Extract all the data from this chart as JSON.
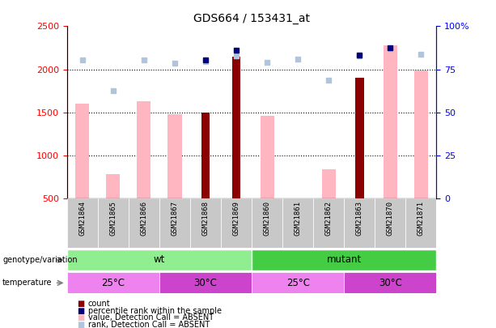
{
  "title": "GDS664 / 153431_at",
  "samples": [
    "GSM21864",
    "GSM21865",
    "GSM21866",
    "GSM21867",
    "GSM21868",
    "GSM21869",
    "GSM21860",
    "GSM21861",
    "GSM21862",
    "GSM21863",
    "GSM21870",
    "GSM21871"
  ],
  "count_values": [
    null,
    null,
    null,
    null,
    1500,
    2150,
    null,
    null,
    null,
    1900,
    null,
    null
  ],
  "value_absent": [
    1600,
    780,
    1630,
    1480,
    null,
    null,
    1460,
    null,
    840,
    null,
    2280,
    1990
  ],
  "rank_absent": [
    2110,
    1750,
    2110,
    2070,
    2090,
    2160,
    2080,
    2120,
    1870,
    2160,
    2240,
    2170
  ],
  "percentile_rank": [
    null,
    null,
    null,
    null,
    2110,
    2220,
    null,
    null,
    null,
    2165,
    2250,
    null
  ],
  "ylim_left": [
    500,
    2500
  ],
  "ylim_right": [
    0,
    100
  ],
  "yticks_left": [
    500,
    1000,
    1500,
    2000,
    2500
  ],
  "ytick_labels_left": [
    "500",
    "1000",
    "1500",
    "2000",
    "2500"
  ],
  "yticks_right": [
    0,
    25,
    50,
    75,
    100
  ],
  "ytick_labels_right": [
    "0",
    "25",
    "50",
    "75",
    "100%"
  ],
  "bar_bottom": 500,
  "color_dark_red": "#8B0000",
  "color_pink": "#FFB6C1",
  "color_light_blue": "#B0C4DE",
  "color_dark_blue": "#000080",
  "color_green_light": "#90EE90",
  "color_green_bright": "#44CC44",
  "color_purple_light": "#EE82EE",
  "color_purple_bright": "#CC44CC",
  "color_gray": "#C8C8C8",
  "legend_items": [
    {
      "color": "#8B0000",
      "label": "count"
    },
    {
      "color": "#000080",
      "label": "percentile rank within the sample"
    },
    {
      "color": "#FFB6C1",
      "label": "value, Detection Call = ABSENT"
    },
    {
      "color": "#B0C4DE",
      "label": "rank, Detection Call = ABSENT"
    }
  ]
}
